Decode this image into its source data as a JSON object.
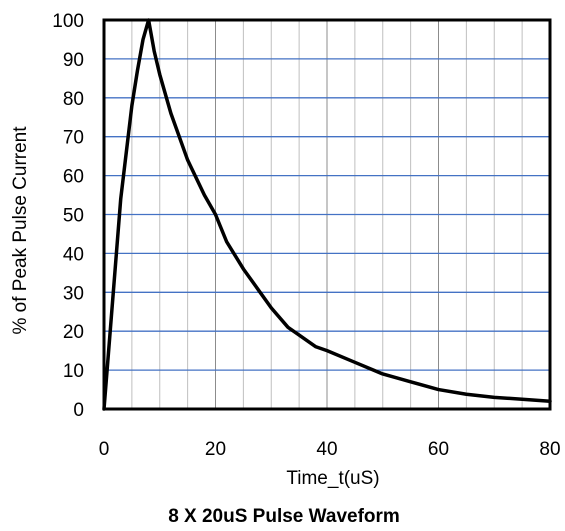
{
  "chart_data": {
    "type": "line",
    "title": "8 X 20uS Pulse Waveform",
    "xlabel": "Time_t(uS)",
    "ylabel": "% of Peak Pulse Current",
    "xlim": [
      0,
      80
    ],
    "ylim": [
      0,
      100
    ],
    "xticks": [
      "0",
      "20",
      "40",
      "60",
      "80"
    ],
    "yticks": [
      "0",
      "10",
      "20",
      "30",
      "40",
      "50",
      "60",
      "70",
      "80",
      "90",
      "100"
    ],
    "grid": true,
    "legend": "none",
    "series": [
      {
        "x": [
          0,
          1,
          2,
          3,
          4,
          5,
          6,
          7,
          8,
          9,
          10,
          12,
          15,
          18,
          20,
          22,
          25,
          28,
          30,
          33,
          35,
          38,
          40,
          45,
          50,
          55,
          60,
          65,
          70,
          75,
          80
        ],
        "y": [
          0,
          18,
          36,
          54,
          66,
          78,
          87,
          95,
          100,
          92,
          86,
          76,
          64,
          55,
          50,
          43,
          36,
          30,
          26,
          21,
          19,
          16,
          15,
          12,
          9,
          7,
          5,
          3.8,
          3,
          2.5,
          2
        ],
        "color": "#000000"
      }
    ]
  },
  "colors": {
    "horizontal_grid": "#4472c4",
    "vertical_grid": "#bfbfbf",
    "vertical_grid_major": "#8c8c8c",
    "frame": "#000000",
    "curve": "#000000"
  }
}
